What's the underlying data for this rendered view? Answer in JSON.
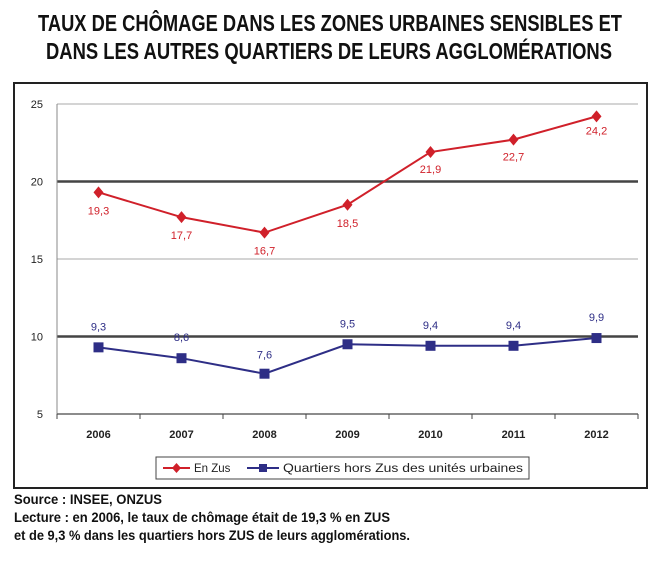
{
  "title": {
    "line1": "TAUX DE CHÔMAGE DANS LES ZONES URBAINES SENSIBLES ET",
    "line2": "DANS LES AUTRES QUARTIERS DE LEURS AGGLOMÉRATIONS"
  },
  "notes": {
    "source": "Source : INSEE, ONZUS",
    "reading1": "Lecture : en 2006, le taux de chômage était de 19,3 % en ZUS",
    "reading2": "et de 9,3 % dans les quartiers hors ZUS de leurs agglomérations."
  },
  "chart_data": {
    "type": "line",
    "categories": [
      "2006",
      "2007",
      "2008",
      "2009",
      "2010",
      "2011",
      "2012"
    ],
    "ylim": [
      5,
      25
    ],
    "yticks": [
      "5",
      "10",
      "15",
      "20",
      "25"
    ],
    "grid": true,
    "legend_position": "bottom",
    "series": [
      {
        "name": "En Zus",
        "color": "#d0202a",
        "marker": "diamond",
        "values": [
          19.3,
          17.7,
          16.7,
          18.5,
          21.9,
          22.7,
          24.2
        ],
        "labels": [
          "19,3",
          "17,7",
          "16,7",
          "18,5",
          "21,9",
          "22,7",
          "24,2"
        ]
      },
      {
        "name": "Quartiers hors Zus des unités urbaines",
        "color": "#2e2e86",
        "marker": "square",
        "values": [
          9.3,
          8.6,
          7.6,
          9.5,
          9.4,
          9.4,
          9.9
        ],
        "labels": [
          "9,3",
          "8,6",
          "7,6",
          "9,5",
          "9,4",
          "9,4",
          "9,9"
        ]
      }
    ]
  }
}
